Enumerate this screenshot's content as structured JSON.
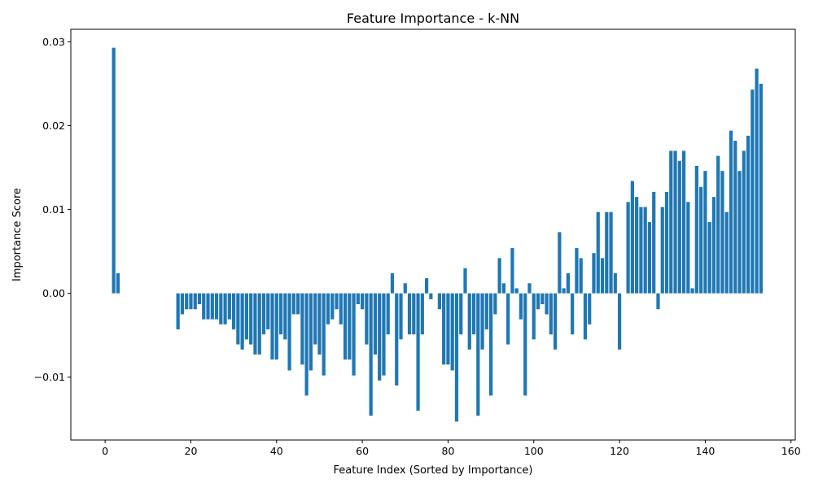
{
  "chart_data": {
    "type": "bar",
    "title": "Feature Importance - k-NN",
    "xlabel": "Feature Index (Sorted by Importance)",
    "ylabel": "Importance Score",
    "xlim": [
      -8,
      161
    ],
    "ylim": [
      -0.0175,
      0.0315
    ],
    "grid": false,
    "bar_color": "#1f77b4",
    "x_ticks": [
      0,
      20,
      40,
      60,
      80,
      100,
      120,
      140,
      160
    ],
    "x_tick_labels": [
      "0",
      "20",
      "40",
      "60",
      "80",
      "100",
      "120",
      "140",
      "160"
    ],
    "y_ticks": [
      -0.01,
      0.0,
      0.01,
      0.02,
      0.03
    ],
    "y_tick_labels": [
      "−0.01",
      "0.00",
      "0.01",
      "0.02",
      "0.03"
    ],
    "x": [
      0,
      1,
      2,
      3,
      4,
      5,
      6,
      7,
      8,
      9,
      10,
      11,
      12,
      13,
      14,
      15,
      16,
      17,
      18,
      19,
      20,
      21,
      22,
      23,
      24,
      25,
      26,
      27,
      28,
      29,
      30,
      31,
      32,
      33,
      34,
      35,
      36,
      37,
      38,
      39,
      40,
      41,
      42,
      43,
      44,
      45,
      46,
      47,
      48,
      49,
      50,
      51,
      52,
      53,
      54,
      55,
      56,
      57,
      58,
      59,
      60,
      61,
      62,
      63,
      64,
      65,
      66,
      67,
      68,
      69,
      70,
      71,
      72,
      73,
      74,
      75,
      76,
      77,
      78,
      79,
      80,
      81,
      82,
      83,
      84,
      85,
      86,
      87,
      88,
      89,
      90,
      91,
      92,
      93,
      94,
      95,
      96,
      97,
      98,
      99,
      100,
      101,
      102,
      103,
      104,
      105,
      106,
      107,
      108,
      109,
      110,
      111,
      112,
      113,
      114,
      115,
      116,
      117,
      118,
      119,
      120,
      121,
      122,
      123,
      124,
      125,
      126,
      127,
      128,
      129,
      130,
      131,
      132,
      133,
      134,
      135,
      136,
      137,
      138,
      139,
      140,
      141,
      142,
      143,
      144,
      145,
      146,
      147,
      148,
      149,
      150,
      151,
      152,
      153
    ],
    "values": [
      0,
      0,
      0.0293,
      0.0024,
      0,
      0,
      0,
      0,
      0,
      0,
      0,
      0,
      0,
      0,
      0,
      0,
      0,
      -0.0043,
      -0.0025,
      -0.0019,
      -0.0019,
      -0.0019,
      -0.0013,
      -0.0031,
      -0.0031,
      -0.0031,
      -0.0031,
      -0.0037,
      -0.0037,
      -0.0031,
      -0.0043,
      -0.0061,
      -0.0067,
      -0.0055,
      -0.0061,
      -0.0073,
      -0.0073,
      -0.0049,
      -0.0043,
      -0.0079,
      -0.0079,
      -0.0049,
      -0.0055,
      -0.0092,
      -0.0025,
      -0.0025,
      -0.0085,
      -0.0122,
      -0.0092,
      -0.0061,
      -0.0073,
      -0.0098,
      -0.0037,
      -0.0031,
      -0.0019,
      -0.0037,
      -0.0079,
      -0.0079,
      -0.0098,
      -0.0013,
      -0.0019,
      -0.0061,
      -0.0146,
      -0.0073,
      -0.0104,
      -0.0098,
      -0.0049,
      0.0024,
      -0.011,
      -0.0055,
      0.0012,
      -0.0049,
      -0.0049,
      -0.014,
      -0.0049,
      0.0018,
      -0.0007,
      0,
      -0.0019,
      -0.0085,
      -0.0085,
      -0.0092,
      -0.0153,
      -0.0049,
      0.003,
      -0.0067,
      -0.0049,
      -0.0146,
      -0.0067,
      -0.0043,
      -0.0122,
      -0.0025,
      0.0042,
      0.0012,
      -0.0061,
      0.0054,
      0.0006,
      -0.0031,
      -0.0122,
      0.0012,
      -0.0055,
      -0.0019,
      -0.0013,
      -0.0025,
      -0.0049,
      -0.0067,
      0.0073,
      0.0006,
      0.0024,
      -0.0049,
      0.0054,
      0.0042,
      -0.0055,
      -0.0037,
      0.0048,
      0.0097,
      0.0042,
      0.0097,
      0.0097,
      0.0024,
      -0.0067,
      0,
      0.0109,
      0.0134,
      0.0115,
      0.0103,
      0.0103,
      0.0085,
      0.0121,
      -0.0019,
      0.0103,
      0.0121,
      0.017,
      0.017,
      0.0158,
      0.017,
      0.0109,
      0.0006,
      0.0152,
      0.0127,
      0.0146,
      0.0085,
      0.0115,
      0.0164,
      0.0146,
      0.0097,
      0.0194,
      0.0182,
      0.0146,
      0.017,
      0.0188,
      0.0243,
      0.0268,
      0.025
    ]
  }
}
